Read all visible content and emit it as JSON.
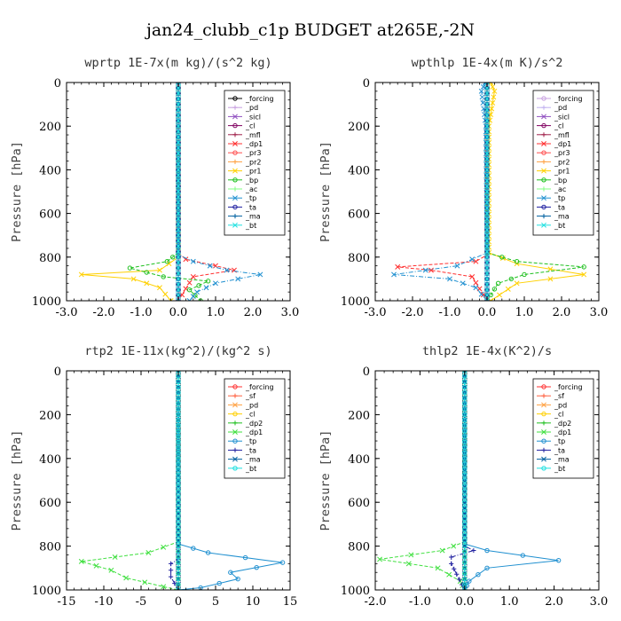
{
  "title": "jan24_clubb_c1p  BUDGET at265E,-2N",
  "chart_data": [
    {
      "type": "line",
      "title": "wprtp  1E-7x(m kg)/(s^2 kg)",
      "ylabel": "Pressure [hPa]",
      "xlim": [
        -3,
        3
      ],
      "ylim": [
        1000,
        0
      ],
      "xticks": [
        "-3.0",
        "-2.0",
        "-1.0",
        "0.0",
        "1.0",
        "2.0",
        "3.0"
      ],
      "xtick_values": [
        -3,
        -2,
        -1,
        0,
        1,
        2,
        3
      ],
      "yticks": [
        "0",
        "200",
        "400",
        "600",
        "800",
        "1000"
      ],
      "ytick_values": [
        0,
        200,
        400,
        600,
        800,
        1000
      ],
      "legend_position": "top-right",
      "series": [
        {
          "name": "_forcing",
          "color": "#000000",
          "points": [
            [
              0,
              0
            ],
            [
              0,
              1000
            ]
          ]
        },
        {
          "name": "_pd",
          "color": "#c8a0e0",
          "points": [
            [
              0,
              0
            ],
            [
              0,
              1000
            ]
          ]
        },
        {
          "name": "_sicl",
          "color": "#9050c0",
          "points": [
            [
              0,
              0
            ],
            [
              0,
              1000
            ]
          ]
        },
        {
          "name": "_cl",
          "color": "#800060",
          "points": [
            [
              0,
              0
            ],
            [
              0,
              1000
            ]
          ]
        },
        {
          "name": "_mfl",
          "color": "#a0204a",
          "points": [
            [
              0,
              0
            ],
            [
              0,
              1000
            ]
          ]
        },
        {
          "name": "_dp1",
          "color": "#ff3030",
          "points": [
            [
              0,
              0
            ],
            [
              0,
              780
            ],
            [
              0.2,
              810
            ],
            [
              1.0,
              840
            ],
            [
              1.5,
              860
            ],
            [
              0.4,
              890
            ],
            [
              0,
              1000
            ]
          ]
        },
        {
          "name": "_pr3",
          "color": "#ff5050",
          "points": [
            [
              0,
              0
            ],
            [
              0,
              1000
            ]
          ]
        },
        {
          "name": "_pr2",
          "color": "#ffa040",
          "points": [
            [
              0,
              0
            ],
            [
              0,
              1000
            ]
          ]
        },
        {
          "name": "_pr1",
          "color": "#ffd000",
          "points": [
            [
              0,
              0
            ],
            [
              0,
              800
            ],
            [
              -0.5,
              860
            ],
            [
              -2.6,
              880
            ],
            [
              -1.2,
              900
            ],
            [
              -0.5,
              940
            ],
            [
              -0.2,
              1000
            ]
          ]
        },
        {
          "name": "_bp",
          "color": "#20c020",
          "points": [
            [
              0,
              0
            ],
            [
              0,
              780
            ],
            [
              -0.3,
              820
            ],
            [
              -1.3,
              850
            ],
            [
              -0.4,
              890
            ],
            [
              0.8,
              910
            ],
            [
              0.3,
              950
            ],
            [
              0.6,
              1000
            ]
          ]
        },
        {
          "name": "_ac",
          "color": "#80ff80",
          "points": [
            [
              0,
              0
            ],
            [
              0,
              1000
            ]
          ]
        },
        {
          "name": "_tp",
          "color": "#2090d0",
          "points": [
            [
              0,
              0
            ],
            [
              0,
              790
            ],
            [
              0.4,
              820
            ],
            [
              1.3,
              860
            ],
            [
              2.2,
              880
            ],
            [
              1.0,
              920
            ],
            [
              0.5,
              960
            ],
            [
              0.3,
              1000
            ]
          ]
        },
        {
          "name": "_ta",
          "color": "#2020a0",
          "points": [
            [
              0,
              0
            ],
            [
              0,
              1000
            ]
          ]
        },
        {
          "name": "_ma",
          "color": "#0060a0",
          "points": [
            [
              0,
              0
            ],
            [
              0,
              1000
            ]
          ]
        },
        {
          "name": "_bt",
          "color": "#20e0e0",
          "points": [
            [
              0,
              0
            ],
            [
              0,
              1000
            ]
          ]
        }
      ]
    },
    {
      "type": "line",
      "title": "wpthlp  1E-4x(m K)/s^2",
      "ylabel": "Pressure [hPa]",
      "xlim": [
        -3,
        3
      ],
      "ylim": [
        1000,
        0
      ],
      "xticks": [
        "-3.0",
        "-2.0",
        "-1.0",
        "0.0",
        "1.0",
        "2.0",
        "3.0"
      ],
      "xtick_values": [
        -3,
        -2,
        -1,
        0,
        1,
        2,
        3
      ],
      "yticks": [
        "0",
        "200",
        "400",
        "600",
        "800",
        "1000"
      ],
      "ytick_values": [
        0,
        200,
        400,
        600,
        800,
        1000
      ],
      "legend_position": "top-right",
      "series": [
        {
          "name": "_forcing",
          "color": "#c8a0e0",
          "points": [
            [
              0,
              0
            ],
            [
              0,
              1000
            ]
          ]
        },
        {
          "name": "_pd",
          "color": "#c0b0f0",
          "points": [
            [
              0,
              0
            ],
            [
              0,
              1000
            ]
          ]
        },
        {
          "name": "_sicl",
          "color": "#9050c0",
          "points": [
            [
              0,
              0
            ],
            [
              0,
              1000
            ]
          ]
        },
        {
          "name": "_cl",
          "color": "#800060",
          "points": [
            [
              0,
              0
            ],
            [
              0,
              1000
            ]
          ]
        },
        {
          "name": "_mfl",
          "color": "#a0204a",
          "points": [
            [
              0,
              0
            ],
            [
              0,
              1000
            ]
          ]
        },
        {
          "name": "_dp1",
          "color": "#ff3030",
          "points": [
            [
              0,
              0
            ],
            [
              0,
              790
            ],
            [
              -0.3,
              820
            ],
            [
              -2.4,
              845
            ],
            [
              -1.5,
              860
            ],
            [
              -0.4,
              890
            ],
            [
              0,
              1000
            ]
          ]
        },
        {
          "name": "_pr3",
          "color": "#ff5050",
          "points": [
            [
              0,
              0
            ],
            [
              0,
              1000
            ]
          ]
        },
        {
          "name": "_pr2",
          "color": "#ffa040",
          "points": [
            [
              0,
              0
            ],
            [
              0,
              1000
            ]
          ]
        },
        {
          "name": "_pr1",
          "color": "#ffd000",
          "points": [
            [
              0.1,
              0
            ],
            [
              0.2,
              40
            ],
            [
              0.05,
              200
            ],
            [
              0.05,
              780
            ],
            [
              0.8,
              830
            ],
            [
              2.6,
              880
            ],
            [
              0.8,
              920
            ],
            [
              0.1,
              1000
            ]
          ]
        },
        {
          "name": "_bp",
          "color": "#20c020",
          "points": [
            [
              0,
              0
            ],
            [
              0,
              780
            ],
            [
              0.8,
              820
            ],
            [
              2.6,
              845
            ],
            [
              1.0,
              880
            ],
            [
              0.3,
              920
            ],
            [
              0,
              1000
            ]
          ]
        },
        {
          "name": "_ac",
          "color": "#80ff80",
          "points": [
            [
              0,
              0
            ],
            [
              0,
              1000
            ]
          ]
        },
        {
          "name": "_tp",
          "color": "#2090d0",
          "points": [
            [
              -0.05,
              0
            ],
            [
              -0.15,
              40
            ],
            [
              -0.03,
              200
            ],
            [
              0,
              780
            ],
            [
              -0.8,
              840
            ],
            [
              -2.5,
              880
            ],
            [
              -1.0,
              900
            ],
            [
              -0.3,
              940
            ],
            [
              0,
              1000
            ]
          ]
        },
        {
          "name": "_ta",
          "color": "#2020a0",
          "points": [
            [
              0,
              0
            ],
            [
              0,
              1000
            ]
          ]
        },
        {
          "name": "_ma",
          "color": "#0060a0",
          "points": [
            [
              0,
              0
            ],
            [
              0,
              1000
            ]
          ]
        },
        {
          "name": "_bt",
          "color": "#20e0e0",
          "points": [
            [
              0,
              0
            ],
            [
              0,
              1000
            ]
          ]
        }
      ]
    },
    {
      "type": "line",
      "title": "rtp2  1E-11x(kg^2)/(kg^2 s)",
      "ylabel": "Pressure [hPa]",
      "xlim": [
        -15,
        15
      ],
      "ylim": [
        1000,
        0
      ],
      "xticks": [
        "-15",
        "-10",
        "-5",
        "0",
        "5",
        "10",
        "15"
      ],
      "xtick_values": [
        -15,
        -10,
        -5,
        0,
        5,
        10,
        15
      ],
      "yticks": [
        "0",
        "200",
        "400",
        "600",
        "800",
        "1000"
      ],
      "ytick_values": [
        0,
        200,
        400,
        600,
        800,
        1000
      ],
      "legend_position": "top-right",
      "series": [
        {
          "name": "_forcing",
          "color": "#ff3030",
          "points": [
            [
              0,
              0
            ],
            [
              0,
              1000
            ]
          ]
        },
        {
          "name": "_sf",
          "color": "#ff6040",
          "points": [
            [
              0,
              0
            ],
            [
              0,
              1000
            ]
          ]
        },
        {
          "name": "_pd",
          "color": "#ffa040",
          "points": [
            [
              0,
              0
            ],
            [
              0,
              1000
            ]
          ]
        },
        {
          "name": "_cl",
          "color": "#ffd000",
          "points": [
            [
              0,
              0
            ],
            [
              0,
              1000
            ]
          ]
        },
        {
          "name": "_dp2",
          "color": "#20c020",
          "points": [
            [
              0,
              0
            ],
            [
              0,
              1000
            ]
          ]
        },
        {
          "name": "_dp1",
          "color": "#40e040",
          "points": [
            [
              0,
              0
            ],
            [
              0,
              780
            ],
            [
              -4,
              830
            ],
            [
              -13,
              870
            ],
            [
              -9,
              910
            ],
            [
              -7,
              945
            ],
            [
              -2,
              985
            ],
            [
              0,
              1000
            ]
          ]
        },
        {
          "name": "_tp",
          "color": "#2090d0",
          "points": [
            [
              0,
              0
            ],
            [
              0,
              790
            ],
            [
              4,
              830
            ],
            [
              14,
              875
            ],
            [
              7,
              920
            ],
            [
              8,
              950
            ],
            [
              3,
              990
            ],
            [
              0,
              1000
            ]
          ]
        },
        {
          "name": "_ta",
          "color": "#2020a0",
          "points": [
            [
              0,
              0
            ],
            [
              0,
              860
            ],
            [
              -1,
              880
            ],
            [
              -1,
              940
            ],
            [
              0,
              1000
            ]
          ]
        },
        {
          "name": "_ma",
          "color": "#0060a0",
          "points": [
            [
              0,
              0
            ],
            [
              0,
              1000
            ]
          ]
        },
        {
          "name": "_bt",
          "color": "#20e0e0",
          "points": [
            [
              0,
              0
            ],
            [
              0,
              1000
            ]
          ]
        }
      ]
    },
    {
      "type": "line",
      "title": "thlp2  1E-4x(K^2)/s",
      "ylabel": "Pressure [hPa]",
      "xlim": [
        -2,
        3
      ],
      "ylim": [
        1000,
        0
      ],
      "xticks": [
        "-2.0",
        "-1.0",
        "0.0",
        "1.0",
        "2.0",
        "3.0"
      ],
      "xtick_values": [
        -2,
        -1,
        0,
        1,
        2,
        3
      ],
      "yticks": [
        "0",
        "200",
        "400",
        "600",
        "800",
        "1000"
      ],
      "ytick_values": [
        0,
        200,
        400,
        600,
        800,
        1000
      ],
      "legend_position": "top-right",
      "series": [
        {
          "name": "_forcing",
          "color": "#ff3030",
          "points": [
            [
              0,
              0
            ],
            [
              0,
              1000
            ]
          ]
        },
        {
          "name": "_sf",
          "color": "#ff6040",
          "points": [
            [
              0,
              0
            ],
            [
              0,
              1000
            ]
          ]
        },
        {
          "name": "_pd",
          "color": "#ffa040",
          "points": [
            [
              0,
              0
            ],
            [
              0,
              1000
            ]
          ]
        },
        {
          "name": "_cl",
          "color": "#ffd000",
          "points": [
            [
              0,
              0
            ],
            [
              0,
              1000
            ]
          ]
        },
        {
          "name": "_dp2",
          "color": "#20c020",
          "points": [
            [
              0,
              0
            ],
            [
              0,
              1000
            ]
          ]
        },
        {
          "name": "_dp1",
          "color": "#40e040",
          "points": [
            [
              0,
              0
            ],
            [
              0,
              780
            ],
            [
              -0.5,
              820
            ],
            [
              -1.9,
              860
            ],
            [
              -0.6,
              900
            ],
            [
              -0.1,
              960
            ],
            [
              0,
              1000
            ]
          ]
        },
        {
          "name": "_tp",
          "color": "#2090d0",
          "points": [
            [
              0,
              0
            ],
            [
              0,
              790
            ],
            [
              0.5,
              820
            ],
            [
              2.1,
              865
            ],
            [
              0.5,
              900
            ],
            [
              0.1,
              960
            ],
            [
              0,
              1000
            ]
          ]
        },
        {
          "name": "_ta",
          "color": "#2020a0",
          "points": [
            [
              0,
              0
            ],
            [
              0,
              800
            ],
            [
              0.2,
              820
            ],
            [
              -0.3,
              850
            ],
            [
              -0.3,
              880
            ],
            [
              0,
              1000
            ]
          ]
        },
        {
          "name": "_ma",
          "color": "#0060a0",
          "points": [
            [
              0,
              0
            ],
            [
              0,
              1000
            ]
          ]
        },
        {
          "name": "_bt",
          "color": "#20e0e0",
          "points": [
            [
              0,
              0
            ],
            [
              0,
              1000
            ]
          ]
        }
      ]
    }
  ]
}
